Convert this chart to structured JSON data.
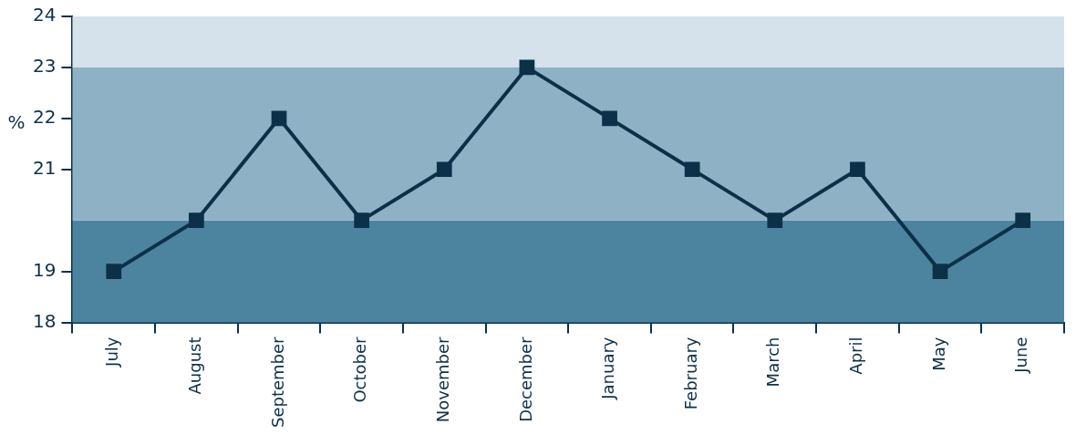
{
  "chart_data": {
    "type": "line",
    "ylabel": "%",
    "categories": [
      "July",
      "August",
      "September",
      "October",
      "November",
      "December",
      "January",
      "February",
      "March",
      "April",
      "May",
      "June"
    ],
    "series": [
      {
        "color": "#0d3049",
        "values": [
          19,
          20,
          22,
          20,
          21,
          23,
          22,
          21,
          20,
          21,
          19,
          20
        ]
      }
    ],
    "ylim": [
      18,
      24
    ],
    "yticks": [
      18,
      19,
      21,
      22,
      23,
      24
    ],
    "bands": [
      {
        "axis": "y",
        "from": 18,
        "to": 20,
        "color": "#4c849f"
      },
      {
        "axis": "y",
        "from": 20,
        "to": 23,
        "color": "#8eb1c5"
      },
      {
        "axis": "y",
        "from": 23,
        "to": 24,
        "color": "#d5e2eb"
      }
    ],
    "marker": "square",
    "line_style": "solid",
    "grid": false,
    "legend": false
  }
}
